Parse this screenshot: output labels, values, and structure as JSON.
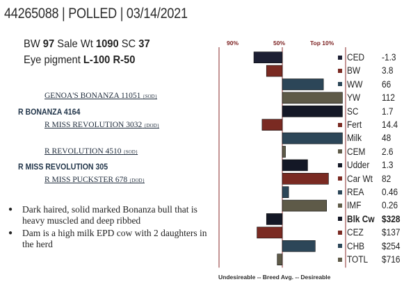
{
  "header": {
    "title": "44265088 | POLLED | 03/14/2021"
  },
  "stats": {
    "line1": [
      {
        "label": "BW ",
        "value": "97"
      },
      {
        "label": "  Sale Wt ",
        "value": "1090"
      },
      {
        "label": "  SC ",
        "value": "37"
      }
    ],
    "line2": [
      {
        "label": "Eye pigment ",
        "value": "L-100"
      },
      {
        "label": " ",
        "value": "R-50"
      }
    ]
  },
  "pedigree": {
    "sire_sire": {
      "name": "GENOA'S BONANZA 11051",
      "code": "{SOD}"
    },
    "sire": {
      "name": "R BONANZA 4164"
    },
    "sire_dam": {
      "name": "R MISS REVOLUTION 3032",
      "code": "{DOD}"
    },
    "dam_sire": {
      "name": "R REVOLUTION 4510",
      "code": "{SOD}"
    },
    "dam": {
      "name": "R MISS REVOLUTION 305"
    },
    "dam_dam": {
      "name": "R MISS PUCKSTER 678",
      "code": "{DOD}"
    }
  },
  "notes": [
    "Dark haired, solid marked Bonanza bull that is heavy muscled and deep ribbed",
    "Dam is a high milk EPD cow with 2 daughters in the herd"
  ],
  "chart_labels": {
    "p90": "90%",
    "p50": "50%",
    "top10": "Top 10%",
    "bottom": "Undesireable -- Breed Avg. -- Desireable"
  },
  "chart_data": {
    "type": "bar",
    "orientation": "horizontal",
    "description_scale": "percentile-rank deviation from breed average (50%), positive = more desirable",
    "xlim": [
      -100,
      100
    ],
    "categories": [
      "CED",
      "BW",
      "WW",
      "YW",
      "SC",
      "Fert",
      "Milk",
      "CEM",
      "Udder",
      "Car Wt",
      "REA",
      "IMF",
      "Blk Cw",
      "CEZ",
      "CHB",
      "TOTL"
    ],
    "values": [
      -45,
      -25,
      65,
      95,
      95,
      -32,
      95,
      5,
      40,
      73,
      10,
      70,
      -25,
      -40,
      52,
      -8
    ],
    "colors": [
      "#1c1f33",
      "#7a2a22",
      "#2c4658",
      "#5e5a48",
      "#141826",
      "#7a2a22",
      "#2c4658",
      "#5e5a48",
      "#141826",
      "#7a2a22",
      "#2c4658",
      "#5e5a48",
      "#141826",
      "#7a2a22",
      "#2c4658",
      "#5e5a48"
    ],
    "epd_values": [
      "-1.3",
      "3.8",
      "66",
      "112",
      "1.7",
      "14.4",
      "48",
      "2.6",
      "1.3",
      "82",
      "0.46",
      "0.26",
      "$328",
      "$137",
      "$254",
      "$716"
    ],
    "bold_rows": [
      "Blk Cw"
    ]
  }
}
